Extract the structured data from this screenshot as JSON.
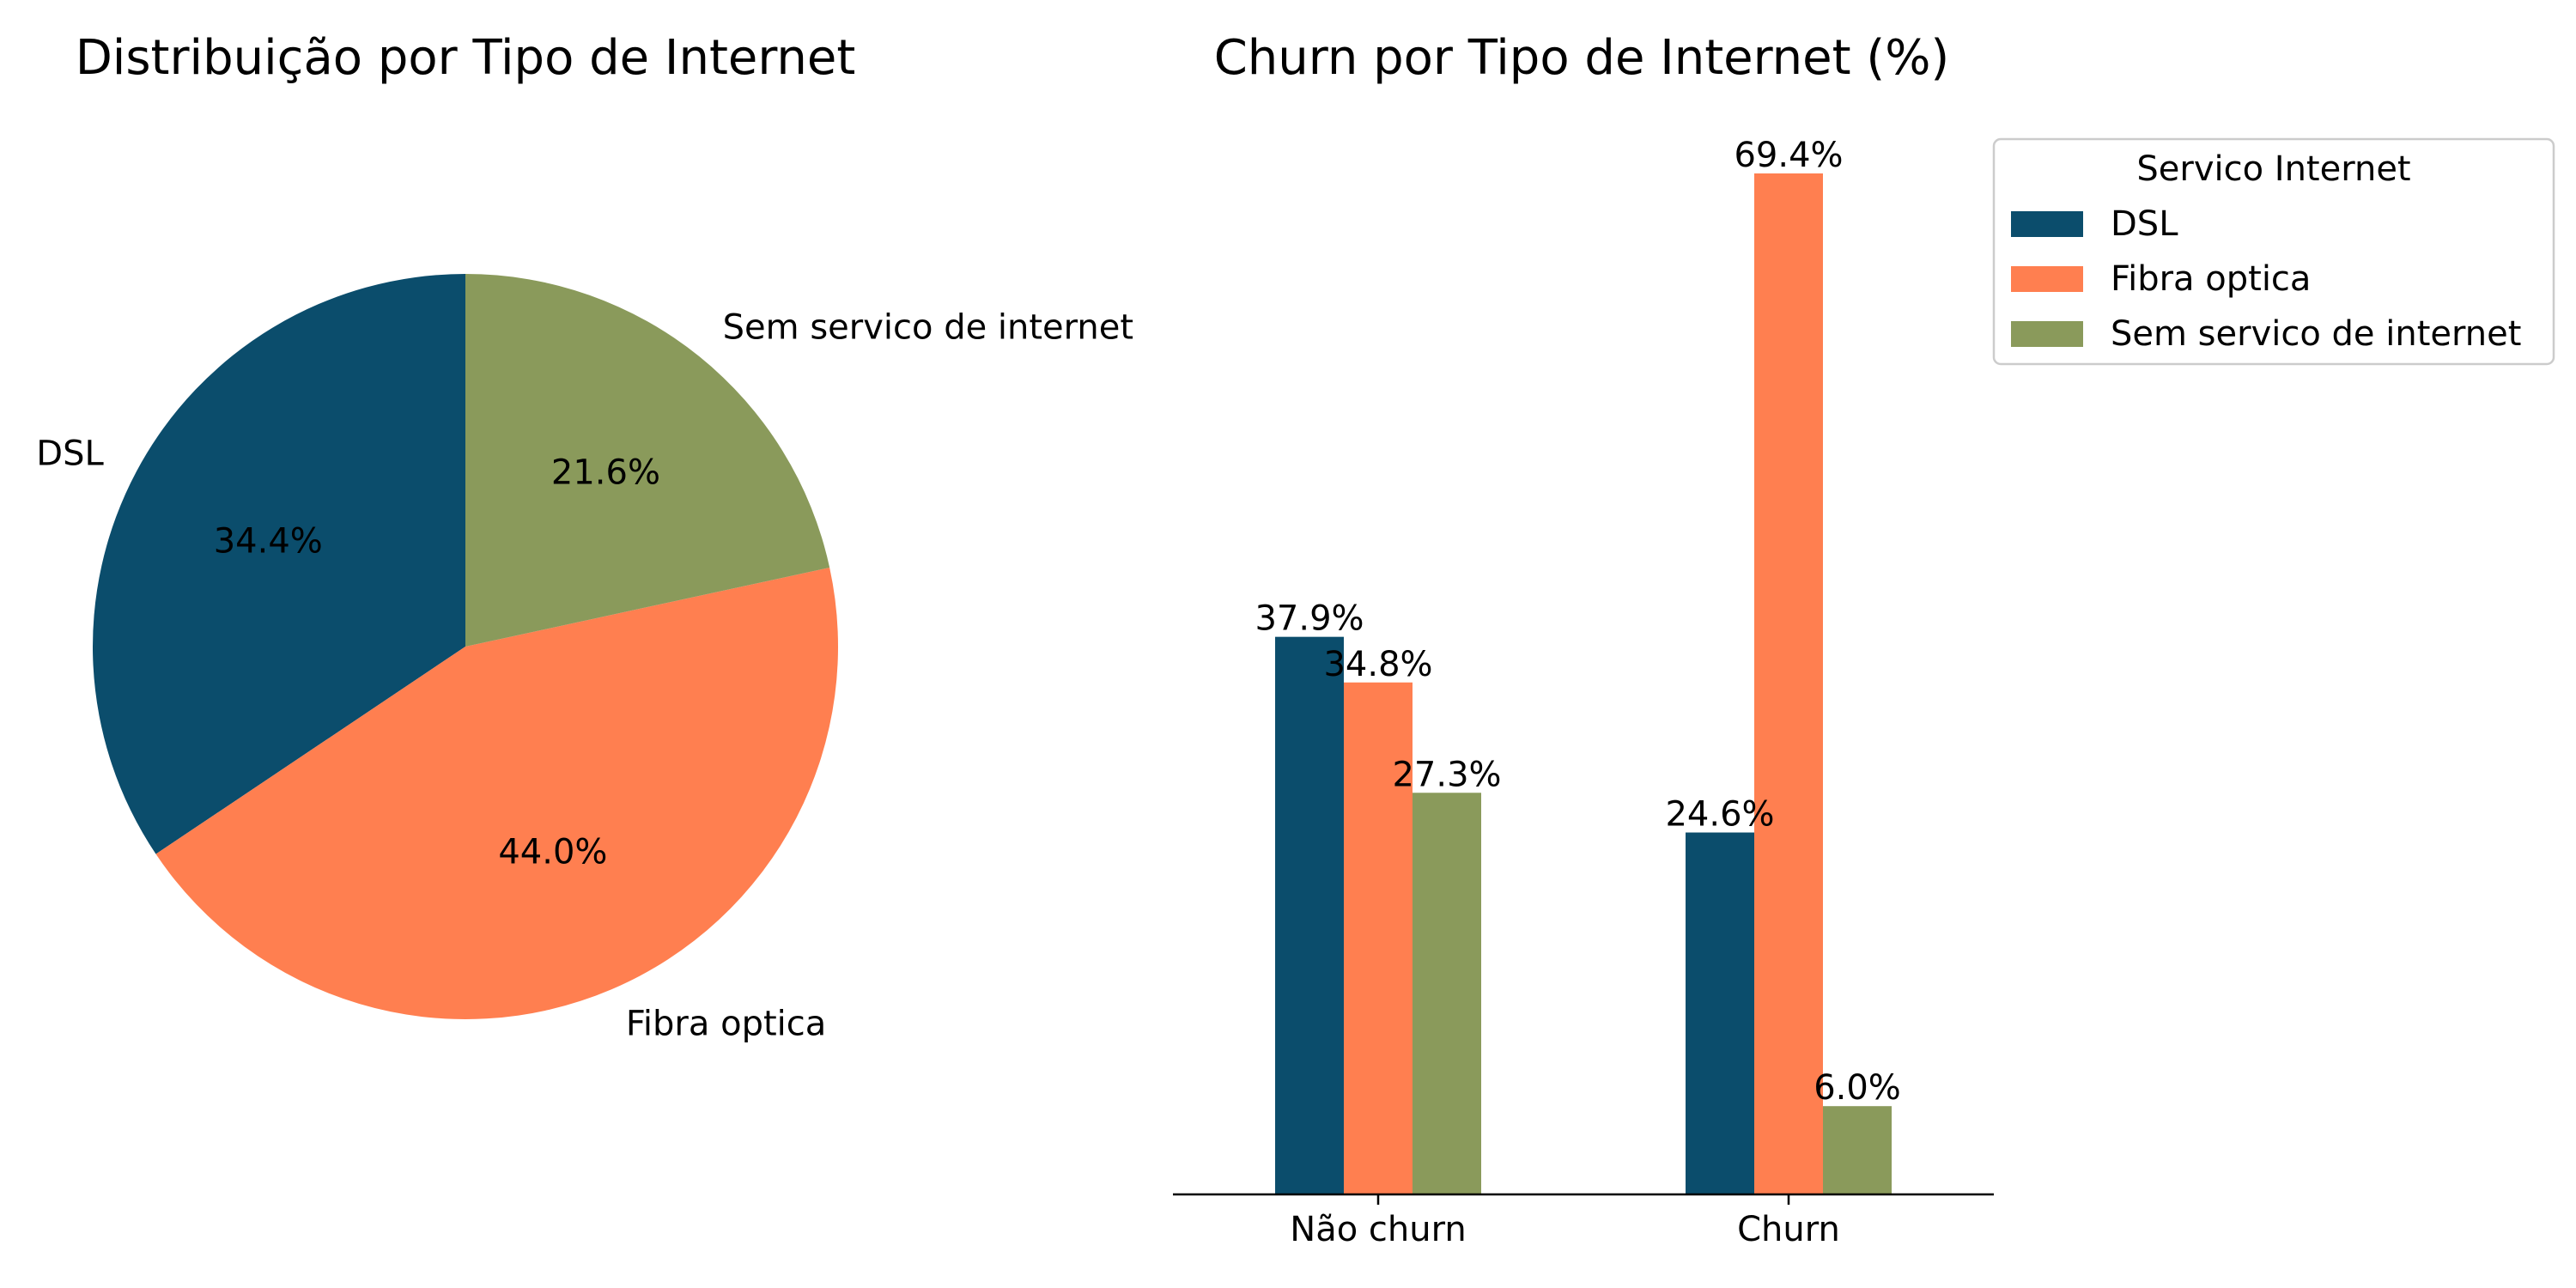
{
  "chart_data": [
    {
      "type": "pie",
      "title": "Distribuição por Tipo de Internet",
      "slices": [
        {
          "label": "DSL",
          "value": 34.4,
          "pct_label": "34.4%",
          "color": "#0B4D6C"
        },
        {
          "label": "Fibra optica",
          "value": 44.0,
          "pct_label": "44.0%",
          "color": "#FF7F50"
        },
        {
          "label": "Sem servico de internet",
          "value": 21.6,
          "pct_label": "21.6%",
          "color": "#8A9A5B"
        }
      ],
      "start_angle_deg": 90,
      "direction": "counterclockwise"
    },
    {
      "type": "bar",
      "title": "Churn por Tipo de Internet (%)",
      "categories": [
        "Não churn",
        "Churn"
      ],
      "series": [
        {
          "name": "DSL",
          "values": [
            37.9,
            24.6
          ],
          "labels": [
            "37.9%",
            "24.6%"
          ],
          "color": "#0B4D6C"
        },
        {
          "name": "Fibra optica",
          "values": [
            34.8,
            69.4
          ],
          "labels": [
            "34.8%",
            "69.4%"
          ],
          "color": "#FF7F50"
        },
        {
          "name": "Sem servico de internet",
          "values": [
            27.3,
            6.0
          ],
          "labels": [
            "27.3%",
            "6.0%"
          ],
          "color": "#8A9A5B"
        }
      ],
      "ylim": [
        0,
        72.9
      ],
      "legend": {
        "title": "Servico Internet",
        "placement": "upper-left-outside"
      },
      "grid": false,
      "y_axis_visible": false
    }
  ]
}
